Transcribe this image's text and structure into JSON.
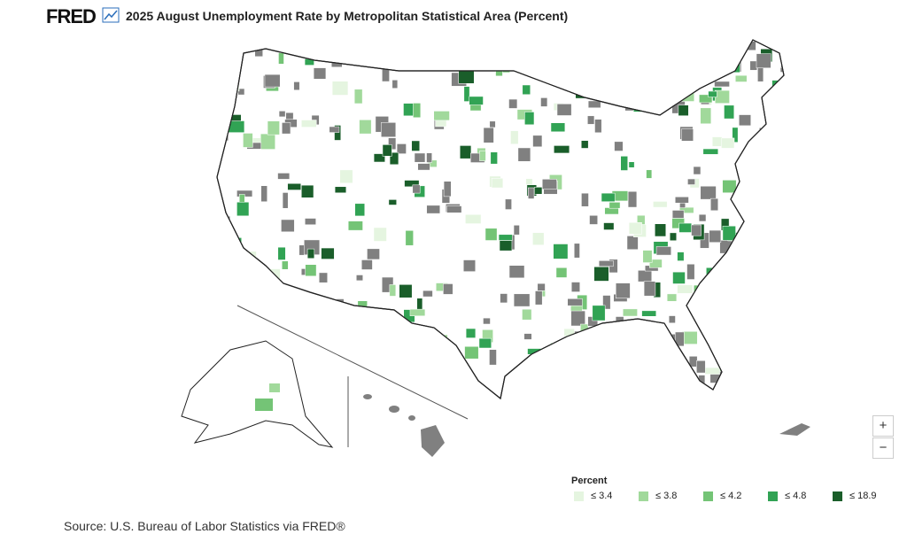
{
  "header": {
    "logo": "FRED",
    "title": "2025 August Unemployment Rate by Metropolitan Statistical Area (Percent)"
  },
  "legend": {
    "title": "Percent",
    "items": [
      {
        "label": "≤ 3.4",
        "color": "#e5f5e0"
      },
      {
        "label": "≤ 3.8",
        "color": "#a1d99b"
      },
      {
        "label": "≤ 4.2",
        "color": "#74c476"
      },
      {
        "label": "≤ 4.8",
        "color": "#31a354"
      },
      {
        "label": "≤ 18.9",
        "color": "#1a5e2a"
      }
    ]
  },
  "zoom": {
    "in": "+",
    "out": "−"
  },
  "source": "Source: U.S. Bureau of Labor Statistics via FRED®"
}
